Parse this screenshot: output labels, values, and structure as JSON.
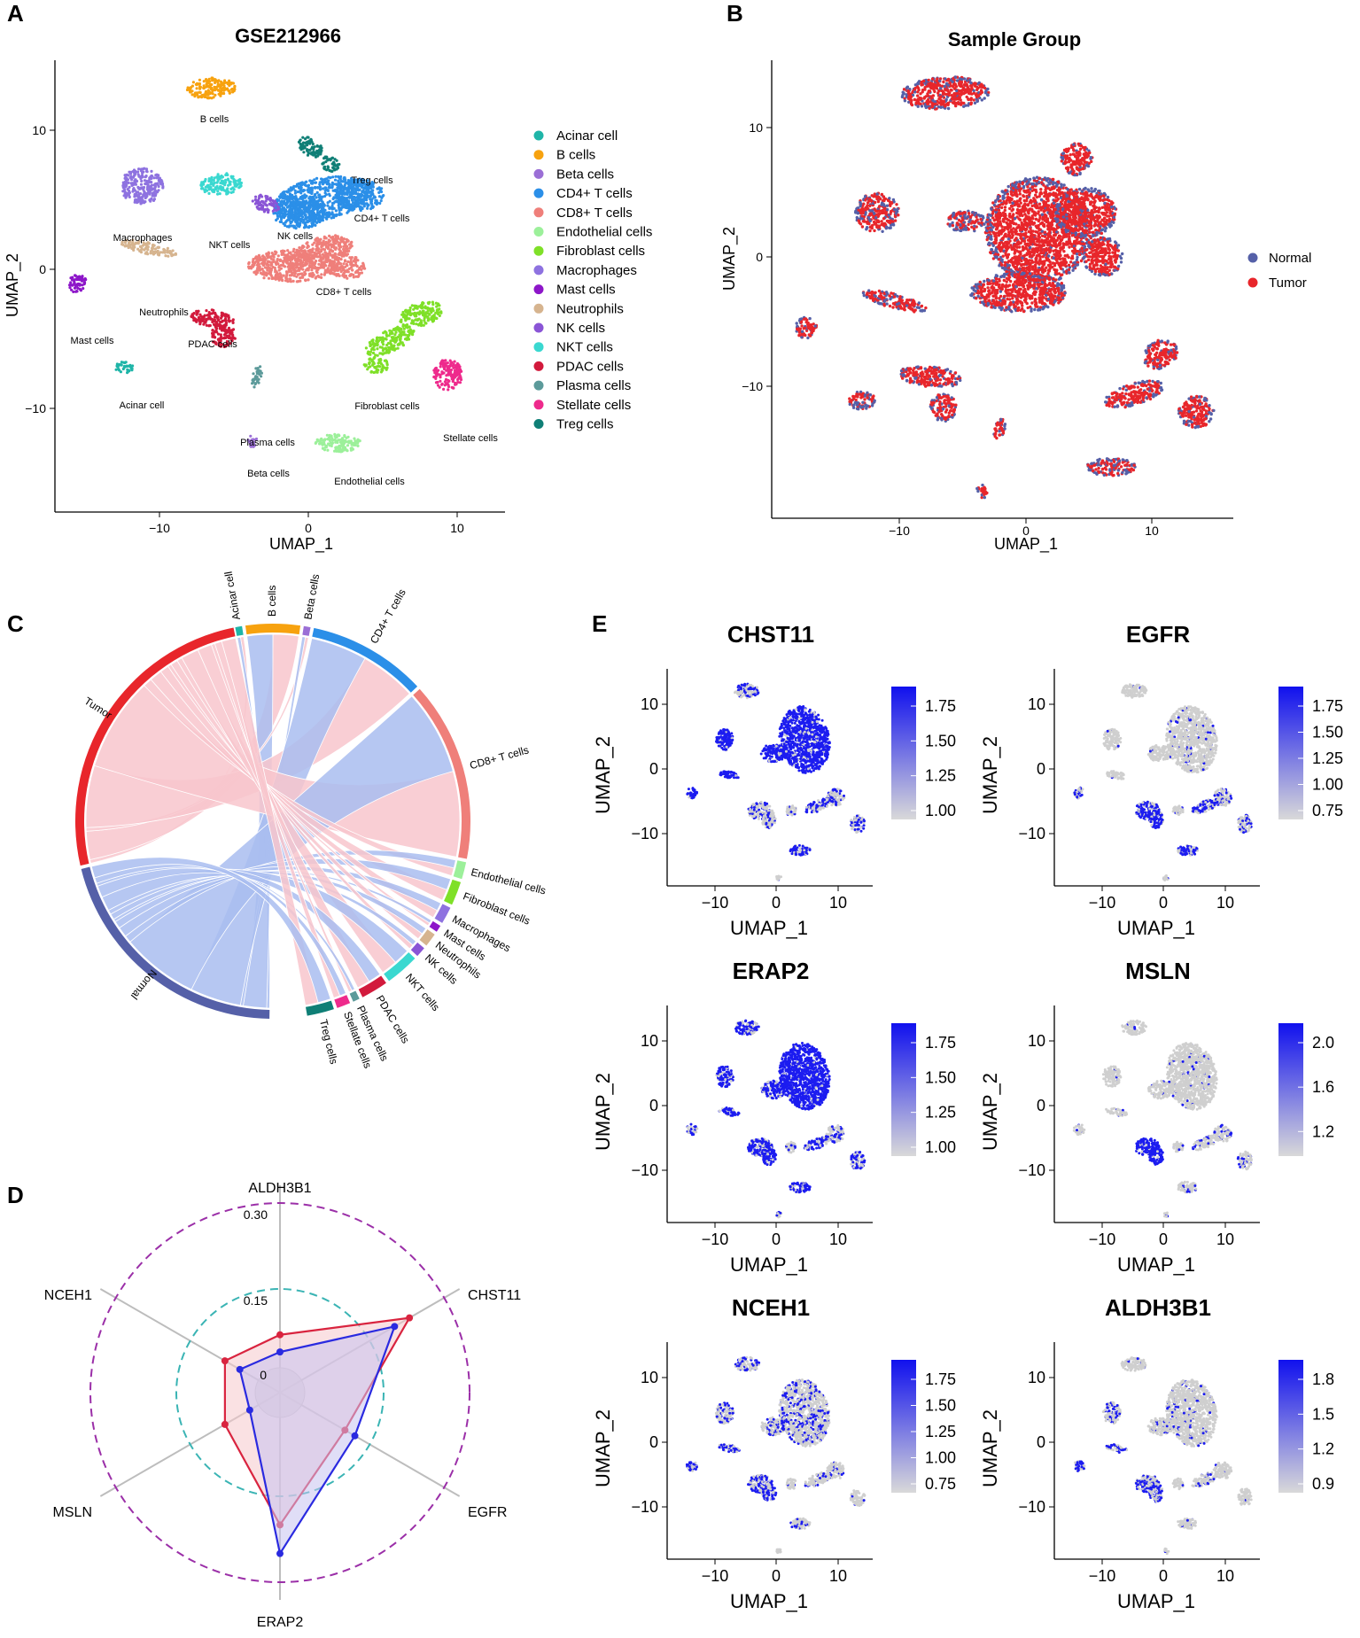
{
  "chart_data": [
    {
      "panel": "A",
      "type": "scatter",
      "title": "GSE212966",
      "xlabel": "UMAP_1",
      "ylabel": "UMAP_2",
      "xticks": [
        "−10",
        "0",
        "10"
      ],
      "yticks": [
        "10",
        "0",
        "−10"
      ],
      "clusters": [
        {
          "name": "Acinar cell",
          "color": "#1fb5a8",
          "label": "Acinar cell"
        },
        {
          "name": "B cells",
          "color": "#f7a20f",
          "label": "B cells"
        },
        {
          "name": "Beta cells",
          "color": "#9b6fd6",
          "label": "Beta cells"
        },
        {
          "name": "CD4+ T cells",
          "color": "#2b8fe8",
          "label": "CD4+ T cells"
        },
        {
          "name": "CD8+ T cells",
          "color": "#ef7f7a",
          "label": "CD8+ T cells"
        },
        {
          "name": "Endothelial cells",
          "color": "#9cf09a",
          "label": "Endothelial cells"
        },
        {
          "name": "Fibroblast cells",
          "color": "#7fe028",
          "label": "Fibroblast cells"
        },
        {
          "name": "Macrophages",
          "color": "#8e72e0",
          "label": "Macrophages"
        },
        {
          "name": "Mast cells",
          "color": "#8d16c9",
          "label": "Mast cells"
        },
        {
          "name": "Neutrophils",
          "color": "#d6b48f",
          "label": "Neutrophils"
        },
        {
          "name": "NK cells",
          "color": "#8a55d6",
          "label": "NK cells"
        },
        {
          "name": "NKT cells",
          "color": "#3ad8d0",
          "label": "NKT cells"
        },
        {
          "name": "PDAC cells",
          "color": "#d21a3c",
          "label": "PDAC cells"
        },
        {
          "name": "Plasma cells",
          "color": "#5c9a9a",
          "label": "Plasma cells"
        },
        {
          "name": "Stellate cells",
          "color": "#ee2a8c",
          "label": "Stellate cells"
        },
        {
          "name": "Treg cells",
          "color": "#0f7f76",
          "label": "Treg cells"
        }
      ]
    },
    {
      "panel": "B",
      "type": "scatter",
      "title": "Sample Group",
      "xlabel": "UMAP_1",
      "ylabel": "UMAP_2",
      "xticks": [
        "−10",
        "0",
        "10"
      ],
      "yticks": [
        "10",
        "0",
        "−10"
      ],
      "groups": [
        {
          "name": "Normal",
          "color": "#5560a8"
        },
        {
          "name": "Tumor",
          "color": "#e8262b"
        }
      ]
    },
    {
      "panel": "C",
      "type": "chord",
      "groups": [
        {
          "name": "Tumor",
          "color": "#e8262b"
        },
        {
          "name": "Normal",
          "color": "#5560a8"
        }
      ],
      "sectors": [
        {
          "name": "Acinar cell",
          "color": "#1fb5a8"
        },
        {
          "name": "B cells",
          "color": "#f7a20f"
        },
        {
          "name": "Beta cells",
          "color": "#9b6fd6"
        },
        {
          "name": "CD4+ T cells",
          "color": "#2b8fe8"
        },
        {
          "name": "CD8+ T cells",
          "color": "#ef7f7a"
        },
        {
          "name": "Endothelial cells",
          "color": "#9cf09a"
        },
        {
          "name": "Fibroblast cells",
          "color": "#7fe028"
        },
        {
          "name": "Macrophages",
          "color": "#8e72e0"
        },
        {
          "name": "Mast cells",
          "color": "#8d16c9"
        },
        {
          "name": "Neutrophils",
          "color": "#d6b48f"
        },
        {
          "name": "NK cells",
          "color": "#8a55d6"
        },
        {
          "name": "NKT cells",
          "color": "#3ad8d0"
        },
        {
          "name": "PDAC cells",
          "color": "#d21a3c"
        },
        {
          "name": "Plasma cells",
          "color": "#5c9a9a"
        },
        {
          "name": "Stellate cells",
          "color": "#ee2a8c"
        },
        {
          "name": "Treg cells",
          "color": "#0f7f76"
        }
      ]
    },
    {
      "panel": "D",
      "type": "radar",
      "axes": [
        "ALDH3B1",
        "CHST11",
        "EGFR",
        "ERAP2",
        "MSLN",
        "NCEH1"
      ],
      "ticks": [
        "0",
        "0.15",
        "0.30"
      ],
      "range": [
        0,
        0.3
      ],
      "series": [
        {
          "name": "red",
          "color": "#d9243f",
          "values": [
            0.07,
            0.23,
            0.1,
            0.2,
            0.08,
            0.08
          ]
        },
        {
          "name": "blue",
          "color": "#2a2ae0",
          "values": [
            0.04,
            0.2,
            0.12,
            0.25,
            0.03,
            0.05
          ]
        }
      ]
    },
    {
      "panel": "E",
      "type": "scatter",
      "xlabel": "UMAP_1",
      "ylabel": "UMAP_2",
      "xticks": [
        "−10",
        "0",
        "10"
      ],
      "yticks": [
        "10",
        "0",
        "−10"
      ],
      "features": [
        {
          "gene": "CHST11",
          "scale": [
            "1.75",
            "1.50",
            "1.25",
            "1.00"
          ]
        },
        {
          "gene": "EGFR",
          "scale": [
            "1.75",
            "1.50",
            "1.25",
            "1.00",
            "0.75"
          ]
        },
        {
          "gene": "ERAP2",
          "scale": [
            "1.75",
            "1.50",
            "1.25",
            "1.00"
          ]
        },
        {
          "gene": "MSLN",
          "scale": [
            "2.0",
            "1.6",
            "1.2"
          ]
        },
        {
          "gene": "NCEH1",
          "scale": [
            "1.75",
            "1.50",
            "1.25",
            "1.00",
            "0.75"
          ]
        },
        {
          "gene": "ALDH3B1",
          "scale": [
            "1.8",
            "1.5",
            "1.2",
            "0.9"
          ]
        }
      ]
    }
  ],
  "panel_letters": {
    "a": "A",
    "b": "B",
    "c": "C",
    "d": "D",
    "e": "E"
  }
}
